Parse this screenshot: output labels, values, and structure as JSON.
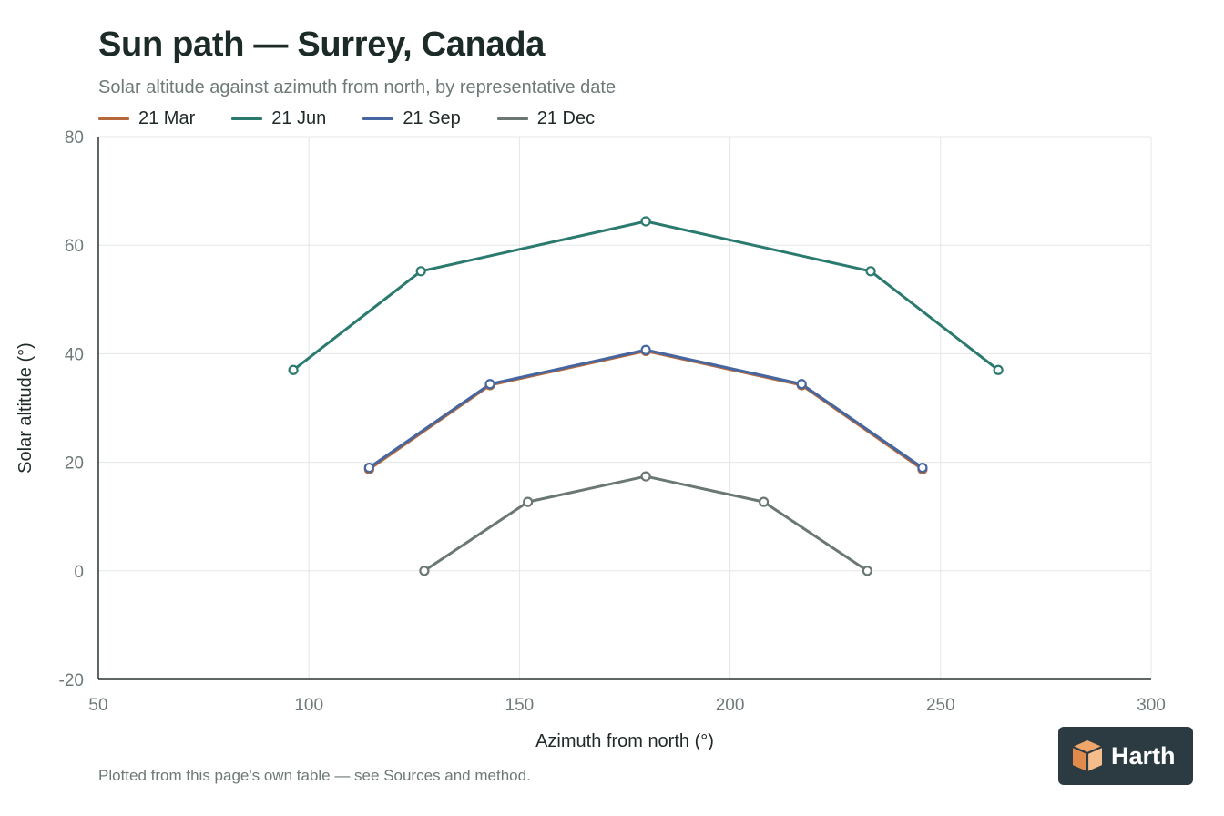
{
  "header": {
    "title": "Sun path — Surrey, Canada",
    "subtitle": "Solar altitude against azimuth from north, by representative date"
  },
  "footnote": "Plotted from this page's own table — see Sources and method.",
  "logo": {
    "text": "Harth",
    "icon": "cube-logo-icon",
    "bg": "#2c3b42",
    "accent": "#f0a66a"
  },
  "chart_data": {
    "type": "line",
    "xlabel": "Azimuth from north (°)",
    "ylabel": "Solar altitude (°)",
    "xlim": [
      50,
      300
    ],
    "ylim": [
      -20,
      80
    ],
    "xticks": [
      50,
      100,
      150,
      200,
      250,
      300
    ],
    "yticks": [
      -20,
      0,
      20,
      40,
      60,
      80
    ],
    "grid": true,
    "legend": "top-left",
    "series": [
      {
        "name": "21 Mar",
        "color": "#b5693a",
        "points": [
          [
            114.3,
            18.7
          ],
          [
            143.0,
            34.2
          ],
          [
            180.0,
            40.5
          ],
          [
            217.0,
            34.2
          ],
          [
            245.7,
            18.7
          ]
        ]
      },
      {
        "name": "21 Jun",
        "color": "#2b7a6f",
        "points": [
          [
            96.3,
            37.0
          ],
          [
            126.6,
            55.2
          ],
          [
            180.0,
            64.4
          ],
          [
            233.4,
            55.2
          ],
          [
            263.7,
            37.0
          ]
        ]
      },
      {
        "name": "21 Sep",
        "color": "#4566a0",
        "points": [
          [
            114.3,
            19.0
          ],
          [
            143.0,
            34.4
          ],
          [
            180.0,
            40.7
          ],
          [
            217.0,
            34.4
          ],
          [
            245.7,
            19.0
          ]
        ]
      },
      {
        "name": "21 Dec",
        "color": "#6b7773",
        "points": [
          [
            127.4,
            0.0
          ],
          [
            152.0,
            12.7
          ],
          [
            180.0,
            17.4
          ],
          [
            208.0,
            12.7
          ],
          [
            232.6,
            0.0
          ]
        ]
      }
    ]
  }
}
